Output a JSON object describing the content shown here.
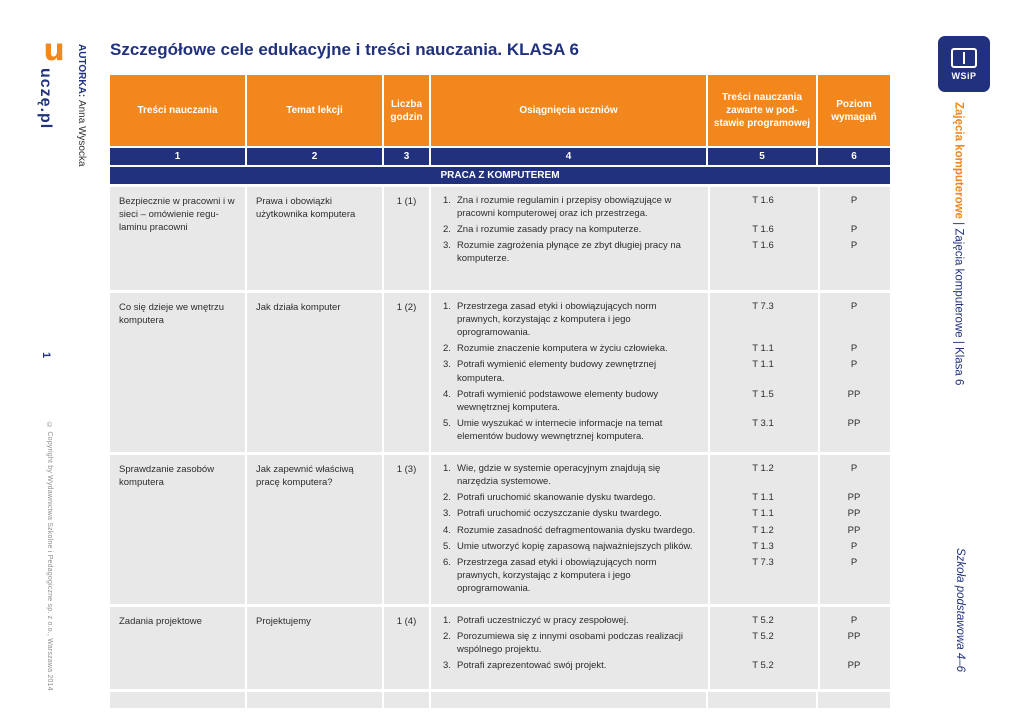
{
  "page": {
    "title": "Szczegółowe cele edukacyjne i treści nauczania. KLASA 6",
    "page_number": "1",
    "author_label": "AUTORKA:",
    "author_name": "Anna Wysocka",
    "copyright": "© Copyright by Wydawnictwa Szkolne i Pedagogiczne sp. z o.o., Warszawa 2014",
    "logo_mark": "u",
    "logo_text": "uczę.pl",
    "wsip_logo": "WSiP"
  },
  "sidebar_right": {
    "series_orange": "Zajęcia komputerowe",
    "series_rest": " | Zajęcia komputerowe | Klasa 6",
    "school": "Szkoła podstawowa 4–6"
  },
  "colors": {
    "orange": "#F2871D",
    "navy": "#21317E",
    "row_bg": "#E8E8E8"
  },
  "table": {
    "headers": [
      "Treści nauczania",
      "Temat lekcji",
      "Liczba godzin",
      "Osiągnięcia uczniów",
      "Treści nauczania zawarte w pod­stawie pro­gramowej",
      "Poziom wymagań"
    ],
    "column_numbers": [
      "1",
      "2",
      "3",
      "4",
      "5",
      "6"
    ],
    "section": "PRACA Z KOMPUTEREM",
    "rows": [
      {
        "tresci": "Bezpiecznie w pracowni i w sieci – omówienie regu­laminu pracowni",
        "temat": "Prawa i obowiązki użytkownika komputera",
        "godziny": "1 (1)",
        "items": [
          {
            "no": "1.",
            "text": "Zna i rozumie regulamin i przepisy obowiązujące w pracowni komputerowej oraz ich przestrzega.",
            "code": "T 1.6",
            "level": "P"
          },
          {
            "no": "2.",
            "text": "Zna i rozumie zasady pracy na komputerze.",
            "code": "T 1.6",
            "level": "P"
          },
          {
            "no": "3.",
            "text": "Rozumie zagrożenia płynące ze zbyt długiej pracy na kom­puterze.",
            "code": "T 1.6",
            "level": "P"
          }
        ]
      },
      {
        "tresci": "Co się dzieje we wnętrzu komputera",
        "temat": "Jak działa komputer",
        "godziny": "1 (2)",
        "items": [
          {
            "no": "1.",
            "text": "Przestrzega zasad etyki i obowiązujących norm prawnych, korzystając z komputera i jego oprogramowania.",
            "code": "T 7.3",
            "level": "P"
          },
          {
            "no": "2.",
            "text": "Rozumie znaczenie komputera w życiu człowieka.",
            "code": "T 1.1",
            "level": "P"
          },
          {
            "no": "3.",
            "text": "Potrafi wymienić elementy budowy zewnętrznej komputera.",
            "code": "T 1.1",
            "level": "P"
          },
          {
            "no": "4.",
            "text": "Potrafi wymienić podstawowe elementy budowy wewnętrznej komputera.",
            "code": "T 1.5",
            "level": "PP"
          },
          {
            "no": "5.",
            "text": "Umie wyszukać w internecie informacje na temat elementów budowy wewnętrznej komputera.",
            "code": "T 3.1",
            "level": "PP"
          }
        ]
      },
      {
        "tresci": "Sprawdzanie zasobów komputera",
        "temat": "Jak zapewnić właściwą pracę komputera?",
        "godziny": "1 (3)",
        "items": [
          {
            "no": "1.",
            "text": "Wie, gdzie w systemie operacyjnym znajdują się narzędzia systemowe.",
            "code": "T 1.2",
            "level": "P"
          },
          {
            "no": "2.",
            "text": "Potrafi uruchomić skanowanie dysku twardego.",
            "code": "T 1.1",
            "level": "PP"
          },
          {
            "no": "3.",
            "text": "Potrafi uruchomić oczyszczanie dysku twardego.",
            "code": "T 1.1",
            "level": "PP"
          },
          {
            "no": "4.",
            "text": "Rozumie zasadność defragmentowania dysku twardego.",
            "code": "T 1.2",
            "level": "PP"
          },
          {
            "no": "5.",
            "text": "Umie utworzyć kopię zapasową najważniejszych plików.",
            "code": "T 1.3",
            "level": "P"
          },
          {
            "no": "6.",
            "text": "Przestrzega zasad etyki i obowiązujących norm prawnych, korzystając z komputera i jego oprogramowania.",
            "code": "T 7.3",
            "level": "P"
          }
        ]
      },
      {
        "tresci": "Zadania projektowe",
        "temat": "Projektujemy",
        "godziny": "1 (4)",
        "items": [
          {
            "no": "1.",
            "text": "Potrafi uczestniczyć w pracy zespołowej.",
            "code": "T 5.2",
            "level": "P"
          },
          {
            "no": "2.",
            "text": "Porozumiewa się z innymi osobami podczas realizacji wspólnego projektu.",
            "code": "T 5.2",
            "level": "PP"
          },
          {
            "no": "3.",
            "text": "Potrafi zaprezentować swój projekt.",
            "code": "T 5.2",
            "level": "PP"
          }
        ]
      }
    ]
  }
}
